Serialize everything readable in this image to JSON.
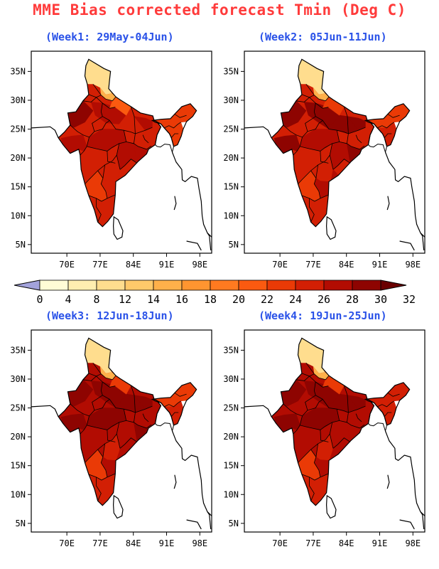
{
  "title": "MME Bias corrected forecast Tmin (Deg C)",
  "panels": [
    {
      "subtitle": "(Week1: 29May-04Jun)",
      "scheme": "week1"
    },
    {
      "subtitle": "(Week2: 05Jun-11Jun)",
      "scheme": "week2"
    },
    {
      "subtitle": "(Week3: 12Jun-18Jun)",
      "scheme": "week3"
    },
    {
      "subtitle": "(Week4: 19Jun-25Jun)",
      "scheme": "week4"
    }
  ],
  "lat_labels": [
    "35N",
    "30N",
    "25N",
    "20N",
    "15N",
    "10N",
    "5N"
  ],
  "lon_labels": [
    "70E",
    "77E",
    "84E",
    "91E",
    "98E"
  ],
  "colorbar": {
    "labels": [
      "0",
      "4",
      "8",
      "12",
      "14",
      "16",
      "18",
      "20",
      "22",
      "24",
      "26",
      "28",
      "30",
      "32"
    ],
    "colors": [
      "#a3a3dc",
      "#fffcd6",
      "#ffeeb0",
      "#ffdd8e",
      "#ffc96a",
      "#ffb04a",
      "#ff9530",
      "#ff7a20",
      "#fb5a10",
      "#ea3a06",
      "#d21f04",
      "#b20c02",
      "#8e0401",
      "#6a0000"
    ]
  }
}
